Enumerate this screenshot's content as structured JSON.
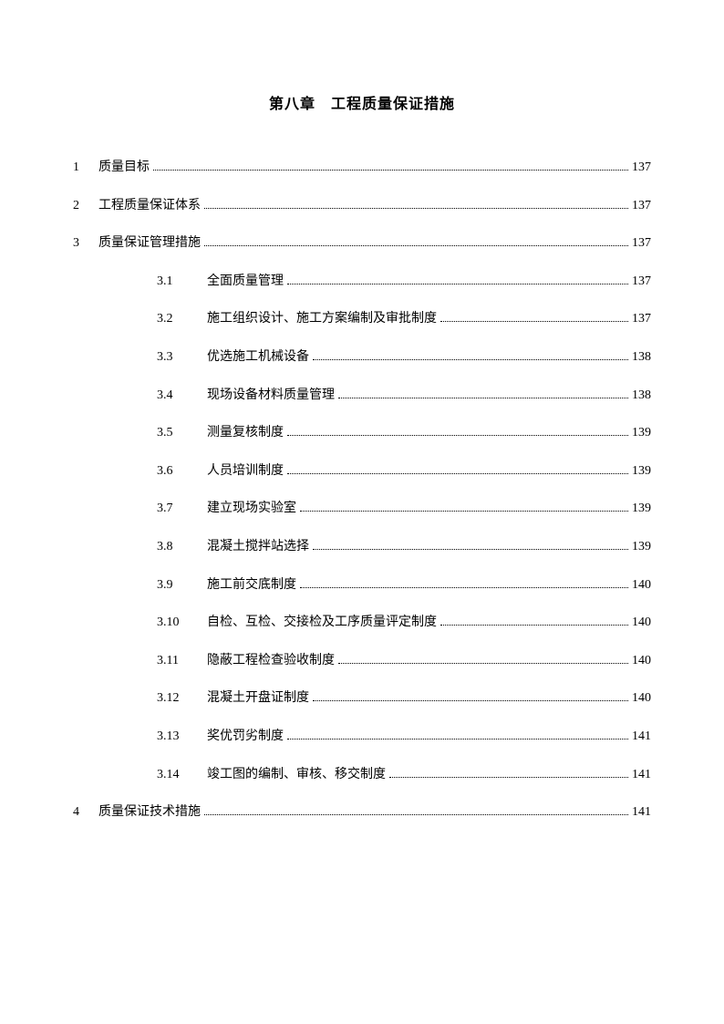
{
  "title": "第八章　工程质量保证措施",
  "entries": [
    {
      "type": "top",
      "num": "1",
      "text": "质量目标",
      "page": "137"
    },
    {
      "type": "top",
      "num": "2",
      "text": "工程质量保证体系",
      "page": "137"
    },
    {
      "type": "top",
      "num": "3",
      "text": "质量保证管理措施",
      "page": "137"
    },
    {
      "type": "sub",
      "num": "3.1",
      "text": "全面质量管理",
      "page": "137"
    },
    {
      "type": "sub",
      "num": "3.2",
      "text": "施工组织设计、施工方案编制及审批制度",
      "page": "137"
    },
    {
      "type": "sub",
      "num": "3.3",
      "text": "优选施工机械设备",
      "page": "138"
    },
    {
      "type": "sub",
      "num": "3.4",
      "text": "现场设备材料质量管理",
      "page": "138"
    },
    {
      "type": "sub",
      "num": "3.5",
      "text": "测量复核制度",
      "page": "139"
    },
    {
      "type": "sub",
      "num": "3.6",
      "text": "人员培训制度",
      "page": "139"
    },
    {
      "type": "sub",
      "num": "3.7",
      "text": "建立现场实验室",
      "page": "139"
    },
    {
      "type": "sub",
      "num": "3.8",
      "text": "混凝土搅拌站选择",
      "page": "139"
    },
    {
      "type": "sub",
      "num": "3.9",
      "text": "施工前交底制度",
      "page": "140"
    },
    {
      "type": "sub",
      "num": "3.10",
      "text": "自检、互检、交接检及工序质量评定制度",
      "page": "140"
    },
    {
      "type": "sub",
      "num": "3.11",
      "text": "隐蔽工程检查验收制度",
      "page": "140"
    },
    {
      "type": "sub",
      "num": "3.12",
      "text": "混凝土开盘证制度",
      "page": "140"
    },
    {
      "type": "sub",
      "num": "3.13",
      "text": "奖优罚劣制度",
      "page": "141"
    },
    {
      "type": "sub",
      "num": "3.14",
      "text": "竣工图的编制、审核、移交制度",
      "page": "141"
    },
    {
      "type": "top",
      "num": "4",
      "text": "质量保证技术措施",
      "page": "141"
    }
  ]
}
